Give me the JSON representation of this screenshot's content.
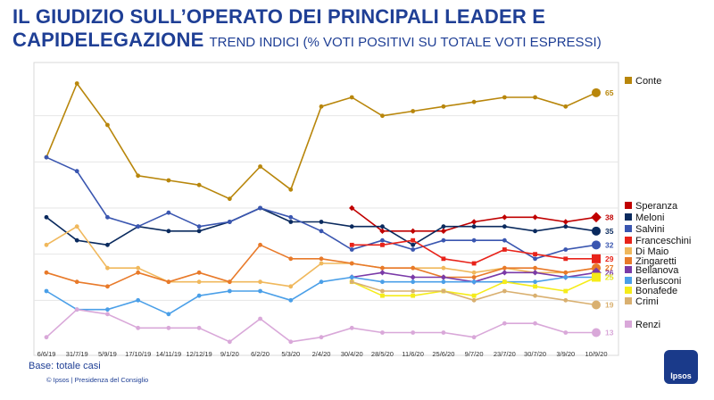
{
  "title": {
    "line1": "IL GIUDIZIO SULL’OPERATO DEI PRINCIPALI LEADER E",
    "line2": "CAPIDELEGAZIONE",
    "subtitle": "TREND INDICI (% VOTI POSITIVI SU TOTALE VOTI ESPRESSI)"
  },
  "footer": {
    "base": "Base: totale casi",
    "source": "© Ipsos | Presidenza del Consiglio",
    "logo": "Ipsos"
  },
  "chart_data": {
    "type": "line",
    "categories": [
      "6/6/19",
      "31/7/19",
      "5/9/19",
      "17/10/19",
      "14/11/19",
      "12/12/19",
      "9/1/20",
      "6/2/20",
      "5/3/20",
      "2/4/20",
      "30/4/20",
      "28/5/20",
      "11/6/20",
      "25/6/20",
      "9/7/20",
      "23/7/20",
      "30/7/20",
      "3/9/20",
      "10/9/20"
    ],
    "ylim": [
      10,
      70
    ],
    "series": [
      {
        "name": "Conte",
        "color": "#b8860b",
        "marker": "circle",
        "end_label": "65",
        "values": [
          51,
          67,
          58,
          47,
          46,
          45,
          42,
          49,
          44,
          62,
          64,
          60,
          61,
          62,
          63,
          64,
          64,
          62,
          65
        ]
      },
      {
        "name": "Speranza",
        "color": "#c00000",
        "marker": "diamond",
        "end_label": "38",
        "values": [
          null,
          null,
          null,
          null,
          null,
          null,
          null,
          null,
          null,
          null,
          40,
          35,
          35,
          35,
          37,
          38,
          38,
          37,
          38
        ]
      },
      {
        "name": "Meloni",
        "color": "#0a2a5e",
        "marker": "circle",
        "end_label": "35",
        "values": [
          38,
          33,
          32,
          36,
          35,
          35,
          37,
          40,
          37,
          37,
          36,
          36,
          32,
          36,
          36,
          36,
          35,
          36,
          35
        ]
      },
      {
        "name": "Salvini",
        "color": "#3a56b0",
        "marker": "circle",
        "end_label": "32",
        "values": [
          51,
          48,
          38,
          36,
          39,
          36,
          37,
          40,
          38,
          35,
          31,
          33,
          31,
          33,
          33,
          33,
          29,
          31,
          32
        ]
      },
      {
        "name": "Franceschini",
        "color": "#e8231a",
        "marker": "square",
        "end_label": "29",
        "values": [
          null,
          null,
          null,
          null,
          null,
          null,
          null,
          null,
          null,
          null,
          32,
          32,
          33,
          29,
          28,
          31,
          30,
          29,
          29
        ]
      },
      {
        "name": "Di Maio",
        "color": "#f0b85c",
        "marker": "circle",
        "end_label": "27",
        "values": [
          32,
          36,
          27,
          27,
          24,
          24,
          24,
          24,
          23,
          28,
          28,
          27,
          27,
          27,
          26,
          27,
          26,
          26,
          27
        ]
      },
      {
        "name": "Zingaretti",
        "color": "#e87a2a",
        "marker": "circle",
        "end_label": "27",
        "values": [
          26,
          24,
          23,
          26,
          24,
          26,
          24,
          32,
          29,
          29,
          28,
          27,
          27,
          25,
          25,
          27,
          27,
          26,
          27
        ]
      },
      {
        "name": "Bellanova",
        "color": "#7a3aa8",
        "marker": "diamond",
        "end_label": "26",
        "values": [
          null,
          null,
          null,
          null,
          null,
          null,
          null,
          null,
          null,
          null,
          25,
          26,
          25,
          25,
          24,
          26,
          26,
          25,
          26
        ]
      },
      {
        "name": "Berlusconi",
        "color": "#4a9fe8",
        "marker": "circle",
        "end_label": "25",
        "values": [
          22,
          18,
          18,
          20,
          17,
          21,
          22,
          22,
          20,
          24,
          25,
          24,
          24,
          24,
          24,
          24,
          24,
          25,
          25
        ]
      },
      {
        "name": "Bonafede",
        "color": "#f5ec1a",
        "marker": "square",
        "end_label": "25",
        "values": [
          null,
          null,
          null,
          null,
          null,
          null,
          null,
          null,
          null,
          null,
          24,
          21,
          21,
          22,
          21,
          24,
          23,
          22,
          25
        ]
      },
      {
        "name": "Crimi",
        "color": "#d9b070",
        "marker": "circle",
        "end_label": "19",
        "values": [
          null,
          null,
          null,
          null,
          null,
          null,
          null,
          null,
          null,
          null,
          24,
          22,
          22,
          22,
          20,
          22,
          21,
          20,
          19
        ]
      },
      {
        "name": "Renzi",
        "color": "#d9a8d9",
        "marker": "circle",
        "end_label": "13",
        "values": [
          12,
          18,
          17,
          14,
          14,
          14,
          11,
          16,
          11,
          12,
          14,
          13,
          13,
          13,
          12,
          15,
          15,
          13,
          13
        ]
      }
    ]
  }
}
